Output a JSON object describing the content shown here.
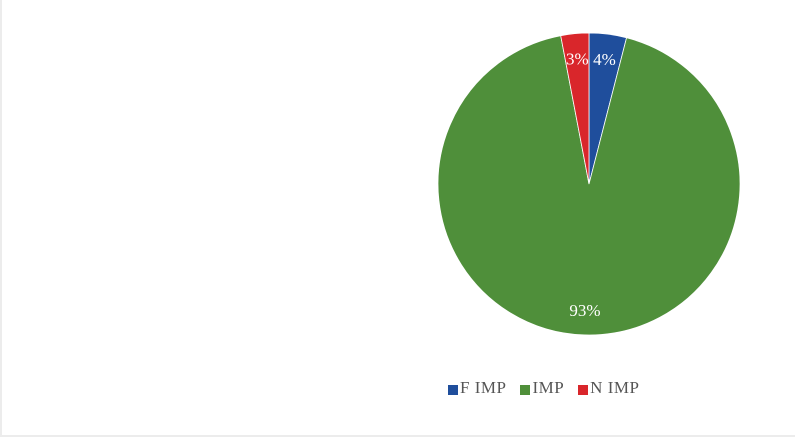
{
  "chart_data": {
    "type": "pie",
    "title": "",
    "categories": [
      "F IMP",
      "IMP",
      "N IMP"
    ],
    "values": [
      4,
      93,
      3
    ],
    "data_labels": [
      "4%",
      "93%",
      "3%"
    ],
    "colors": [
      "#1f4e9c",
      "#4f8f3a",
      "#d9262b"
    ],
    "start_angle_deg": 0,
    "direction": "clockwise",
    "legend_position": "bottom-right"
  }
}
